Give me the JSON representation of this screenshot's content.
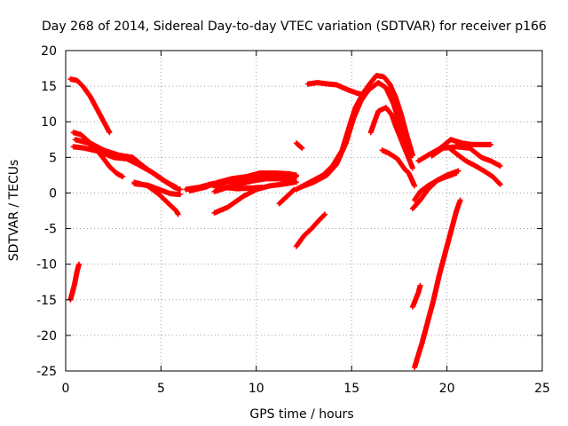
{
  "chart_data": {
    "type": "scatter",
    "title": "Day 268 of 2014, Sidereal Day-to-day VTEC variation (SDTVAR) for receiver p166",
    "xlabel": "GPS time / hours",
    "ylabel": "SDTVAR / TECUs",
    "xlim": [
      0,
      25
    ],
    "ylim": [
      -25,
      20
    ],
    "xticks": [
      0,
      5,
      10,
      15,
      20,
      25
    ],
    "yticks": [
      -25,
      -20,
      -15,
      -10,
      -5,
      0,
      5,
      10,
      15,
      20
    ],
    "xtick_labels": [
      "0",
      "5",
      "10",
      "15",
      "20",
      "25"
    ],
    "ytick_labels": [
      "-25",
      "-20",
      "-15",
      "-10",
      "-5",
      "0",
      "5",
      "10",
      "15",
      "20"
    ],
    "grid": true,
    "marker_color": "#ff0000",
    "series": [
      {
        "points": [
          [
            0.25,
            16
          ],
          [
            0.6,
            15.8
          ],
          [
            0.9,
            15
          ],
          [
            1.3,
            13.5
          ],
          [
            1.8,
            11
          ],
          [
            2.3,
            8.5
          ]
        ]
      },
      {
        "points": [
          [
            0.25,
            -15
          ],
          [
            0.45,
            -13
          ],
          [
            0.6,
            -11
          ],
          [
            0.7,
            -10
          ]
        ]
      },
      {
        "points": [
          [
            0.4,
            8.5
          ],
          [
            0.8,
            8.2
          ],
          [
            1.3,
            7
          ],
          [
            2,
            6
          ],
          [
            2.8,
            5.3
          ],
          [
            3.5,
            5
          ],
          [
            4.2,
            3.5
          ],
          [
            5,
            2
          ],
          [
            5.7,
            0.8
          ],
          [
            6,
            0.5
          ]
        ]
      },
      {
        "points": [
          [
            0.4,
            6.5
          ],
          [
            1,
            6.3
          ],
          [
            1.8,
            5.8
          ],
          [
            2.5,
            5
          ],
          [
            3.2,
            4.8
          ],
          [
            3.8,
            4
          ],
          [
            4.6,
            2.8
          ],
          [
            5.3,
            1.5
          ],
          [
            5.8,
            0.8
          ]
        ]
      },
      {
        "points": [
          [
            0.5,
            7.5
          ],
          [
            1.2,
            7
          ],
          [
            1.8,
            5.5
          ],
          [
            2.3,
            3.7
          ],
          [
            2.7,
            2.7
          ],
          [
            3,
            2.3
          ]
        ]
      },
      {
        "points": [
          [
            3.6,
            1.5
          ],
          [
            4.3,
            1
          ],
          [
            4.9,
            -0.2
          ],
          [
            5.4,
            -1.5
          ],
          [
            5.8,
            -2.5
          ],
          [
            5.9,
            -3
          ]
        ]
      },
      {
        "points": [
          [
            3.6,
            1.3
          ],
          [
            4.3,
            1.1
          ],
          [
            4.9,
            0.5
          ],
          [
            5.5,
            -0.1
          ],
          [
            6,
            -0.2
          ]
        ]
      },
      {
        "points": [
          [
            6.3,
            0.5
          ],
          [
            7,
            0.8
          ],
          [
            7.7,
            1.3
          ],
          [
            8.3,
            1.5
          ],
          [
            9,
            1.8
          ],
          [
            9.7,
            2.2
          ],
          [
            10.3,
            2.5
          ],
          [
            11,
            2.6
          ],
          [
            11.7,
            2.4
          ],
          [
            12.1,
            2.3
          ]
        ]
      },
      {
        "points": [
          [
            6.5,
            0.3
          ],
          [
            7.3,
            0.8
          ],
          [
            8,
            1.5
          ],
          [
            8.7,
            2
          ],
          [
            9.5,
            2.3
          ],
          [
            10.2,
            2.8
          ],
          [
            11,
            2.8
          ],
          [
            11.7,
            2.7
          ],
          [
            12.1,
            2.5
          ]
        ]
      },
      {
        "points": [
          [
            7.8,
            -2.8
          ],
          [
            8.5,
            -2
          ],
          [
            9.3,
            -0.5
          ],
          [
            10,
            0.5
          ],
          [
            10.7,
            1
          ],
          [
            11.3,
            1.2
          ],
          [
            12,
            1.5
          ]
        ]
      },
      {
        "points": [
          [
            7.8,
            0.2
          ],
          [
            8.5,
            0.8
          ],
          [
            9.2,
            1.3
          ],
          [
            9.8,
            1.7
          ],
          [
            10.5,
            2
          ],
          [
            11.2,
            2
          ],
          [
            11.8,
            1.8
          ],
          [
            12.1,
            1.5
          ]
        ]
      },
      {
        "points": [
          [
            7.5,
            1.2
          ],
          [
            8.3,
            0.8
          ],
          [
            9,
            0.6
          ],
          [
            9.7,
            0.7
          ],
          [
            10.3,
            0.8
          ]
        ]
      },
      {
        "points": [
          [
            11.2,
            -1.5
          ],
          [
            11.6,
            -0.5
          ],
          [
            12,
            0.5
          ]
        ]
      },
      {
        "points": [
          [
            12.1,
            7
          ],
          [
            12.4,
            6.3
          ]
        ]
      },
      {
        "points": [
          [
            12.1,
            0.5
          ],
          [
            12.8,
            1.5
          ],
          [
            13.5,
            2.5
          ],
          [
            14,
            3.8
          ],
          [
            14.5,
            6
          ],
          [
            14.9,
            9.5
          ],
          [
            15.2,
            12
          ],
          [
            15.6,
            14
          ],
          [
            16,
            15.5
          ],
          [
            16.3,
            16.5
          ],
          [
            16.7,
            16.3
          ],
          [
            17,
            15.3
          ],
          [
            17.3,
            13.5
          ],
          [
            17.6,
            11
          ],
          [
            17.9,
            8
          ],
          [
            18.2,
            5.3
          ]
        ]
      },
      {
        "points": [
          [
            12.3,
            0.8
          ],
          [
            13,
            1.5
          ],
          [
            13.7,
            2.5
          ],
          [
            14.2,
            4
          ],
          [
            14.7,
            7
          ],
          [
            15.1,
            10.5
          ],
          [
            15.5,
            13
          ],
          [
            15.9,
            14.5
          ],
          [
            16.4,
            15.5
          ],
          [
            16.8,
            14.8
          ],
          [
            17.2,
            12.5
          ],
          [
            17.5,
            10
          ],
          [
            17.8,
            7.5
          ],
          [
            18.1,
            5
          ]
        ]
      },
      {
        "points": [
          [
            12.7,
            15.3
          ],
          [
            13.2,
            15.5
          ],
          [
            13.8,
            15.3
          ],
          [
            14.2,
            15.2
          ],
          [
            14.8,
            14.5
          ],
          [
            15.3,
            14
          ],
          [
            15.6,
            13.8
          ]
        ]
      },
      {
        "points": [
          [
            12.1,
            -7.5
          ],
          [
            12.5,
            -6
          ],
          [
            12.9,
            -5
          ],
          [
            13.3,
            -3.8
          ],
          [
            13.6,
            -3
          ]
        ]
      },
      {
        "points": [
          [
            16,
            8.5
          ],
          [
            16.4,
            11.5
          ],
          [
            16.8,
            12
          ],
          [
            17.1,
            11
          ],
          [
            17.3,
            9.5
          ],
          [
            17.6,
            7.5
          ],
          [
            17.9,
            5.5
          ],
          [
            18.2,
            3.5
          ]
        ]
      },
      {
        "points": [
          [
            16.6,
            6
          ],
          [
            17,
            5.5
          ],
          [
            17.4,
            4.8
          ],
          [
            17.8,
            3.3
          ],
          [
            18,
            2.8
          ],
          [
            18.3,
            1
          ]
        ]
      },
      {
        "points": [
          [
            18.3,
            -1
          ],
          [
            18.6,
            0.2
          ],
          [
            19,
            1
          ],
          [
            19.5,
            1.8
          ],
          [
            20,
            2.3
          ],
          [
            20.5,
            2.8
          ]
        ]
      },
      {
        "points": [
          [
            18.2,
            -2.2
          ],
          [
            18.6,
            -1
          ],
          [
            19,
            0.5
          ],
          [
            19.5,
            1.8
          ],
          [
            20,
            2.5
          ],
          [
            20.6,
            3.1
          ]
        ]
      },
      {
        "points": [
          [
            18.5,
            4.5
          ],
          [
            19,
            5.3
          ],
          [
            19.6,
            6.2
          ],
          [
            20.2,
            7.5
          ],
          [
            20.8,
            7
          ],
          [
            21.3,
            6.8
          ],
          [
            21.8,
            6.8
          ],
          [
            22.3,
            6.8
          ]
        ]
      },
      {
        "points": [
          [
            19.2,
            5.2
          ],
          [
            19.8,
            6.3
          ],
          [
            20.5,
            6.5
          ],
          [
            21.2,
            6.3
          ],
          [
            21.8,
            5
          ],
          [
            22.3,
            4.5
          ],
          [
            22.8,
            3.8
          ]
        ]
      },
      {
        "points": [
          [
            19.9,
            6.8
          ],
          [
            20.5,
            5.5
          ],
          [
            21,
            4.5
          ],
          [
            21.5,
            3.8
          ],
          [
            22,
            3
          ],
          [
            22.4,
            2.3
          ],
          [
            22.8,
            1.2
          ]
        ]
      },
      {
        "points": [
          [
            18.3,
            -24.5
          ],
          [
            18.7,
            -21
          ],
          [
            19,
            -18
          ],
          [
            19.3,
            -15
          ],
          [
            19.6,
            -11.5
          ],
          [
            19.9,
            -8.5
          ],
          [
            20.2,
            -5.5
          ],
          [
            20.5,
            -2.5
          ],
          [
            20.7,
            -1
          ]
        ]
      },
      {
        "points": [
          [
            18.2,
            -16
          ],
          [
            18.5,
            -14
          ],
          [
            18.6,
            -13
          ]
        ]
      }
    ]
  }
}
